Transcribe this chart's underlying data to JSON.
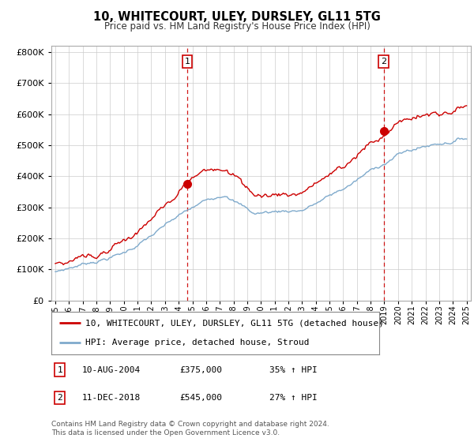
{
  "title": "10, WHITECOURT, ULEY, DURSLEY, GL11 5TG",
  "subtitle": "Price paid vs. HM Land Registry's House Price Index (HPI)",
  "ylim": [
    0,
    820000
  ],
  "yticks": [
    0,
    100000,
    200000,
    300000,
    400000,
    500000,
    600000,
    700000,
    800000
  ],
  "house_color": "#cc0000",
  "hpi_color": "#7faacc",
  "vline_color": "#cc0000",
  "background_color": "#ffffff",
  "grid_color": "#cccccc",
  "sale1_x": 2004.62,
  "sale1_price": 375000,
  "sale2_x": 2018.95,
  "sale2_price": 545000,
  "legend_house": "10, WHITECOURT, ULEY, DURSLEY, GL11 5TG (detached house)",
  "legend_hpi": "HPI: Average price, detached house, Stroud",
  "note1_label": "1",
  "note1_date": "10-AUG-2004",
  "note1_price": "£375,000",
  "note1_hpi": "35% ↑ HPI",
  "note2_label": "2",
  "note2_date": "11-DEC-2018",
  "note2_price": "£545,000",
  "note2_hpi": "27% ↑ HPI",
  "footer": "Contains HM Land Registry data © Crown copyright and database right 2024.\nThis data is licensed under the Open Government Licence v3.0."
}
